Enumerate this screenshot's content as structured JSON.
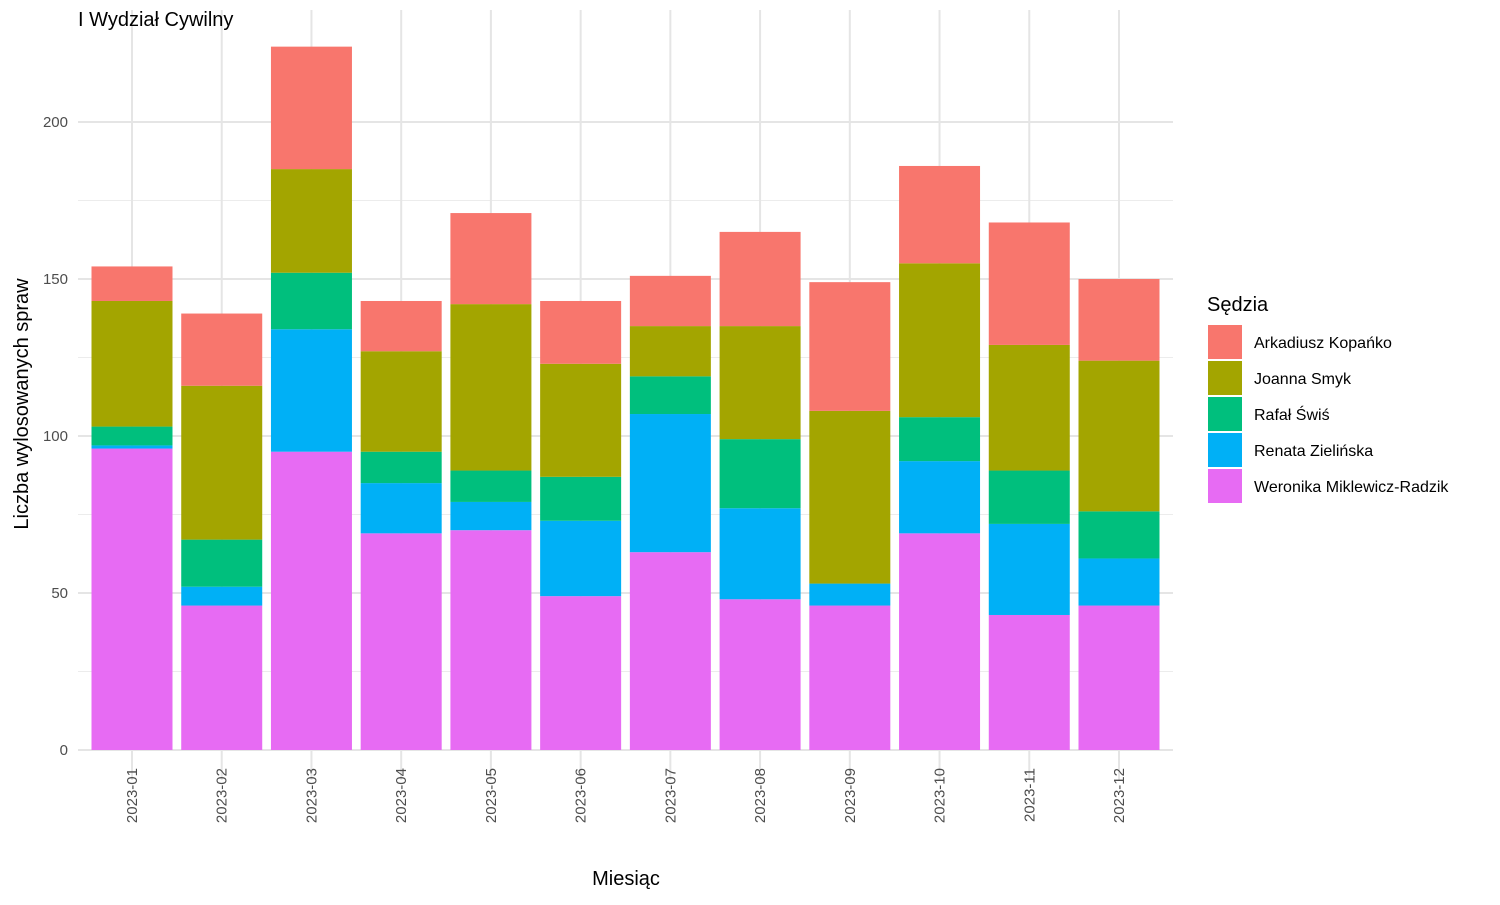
{
  "chart_data": {
    "type": "bar",
    "stacked": true,
    "title": "I Wydział Cywilny",
    "xlabel": "Miesiąc",
    "ylabel": "Liczba wylosowanych spraw",
    "categories": [
      "2023-01",
      "2023-02",
      "2023-03",
      "2023-04",
      "2023-05",
      "2023-06",
      "2023-07",
      "2023-08",
      "2023-09",
      "2023-10",
      "2023-11",
      "2023-12"
    ],
    "ylim": [
      0,
      225
    ],
    "yticks": [
      0,
      50,
      100,
      150,
      200
    ],
    "grid": true,
    "legend": {
      "title": "Sędzia",
      "position": "right"
    },
    "series": [
      {
        "name": "Weronika Miklewicz-Radzik",
        "color": "#E76BF3",
        "values": [
          96,
          46,
          95,
          69,
          70,
          49,
          63,
          48,
          46,
          69,
          43,
          46
        ]
      },
      {
        "name": "Renata Zielińska",
        "color": "#00B0F6",
        "values": [
          1,
          6,
          39,
          16,
          9,
          24,
          44,
          29,
          7,
          23,
          29,
          15
        ]
      },
      {
        "name": "Rafał Świś",
        "color": "#00BF7D",
        "values": [
          6,
          15,
          18,
          10,
          10,
          14,
          12,
          22,
          0,
          14,
          17,
          15
        ]
      },
      {
        "name": "Joanna Smyk",
        "color": "#A3A500",
        "values": [
          40,
          49,
          33,
          32,
          53,
          36,
          16,
          36,
          55,
          49,
          40,
          48
        ]
      },
      {
        "name": "Arkadiusz Kopańko",
        "color": "#F8766D",
        "values": [
          11,
          23,
          39,
          16,
          29,
          20,
          16,
          30,
          41,
          31,
          39,
          26
        ]
      }
    ]
  }
}
